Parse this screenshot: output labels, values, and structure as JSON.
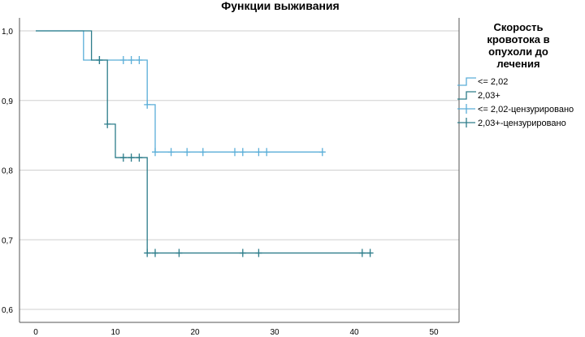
{
  "chart_data": {
    "type": "line",
    "title": "Функции выживания",
    "xlabel": "",
    "ylabel": "",
    "xlim": [
      0,
      50
    ],
    "ylim": [
      0.6,
      1.0
    ],
    "x_ticks": [
      0,
      10,
      20,
      30,
      40,
      50
    ],
    "y_ticks": [
      0.6,
      0.7,
      0.8,
      0.9,
      1.0
    ],
    "x_tick_labels": [
      "0",
      "10",
      "20",
      "30",
      "40",
      "50"
    ],
    "y_tick_labels": [
      "0,6",
      "0,7",
      "0,8",
      "0,9",
      "1,0"
    ],
    "grid": "horizontal",
    "legend_position": "top-right",
    "legend_title": "Скорость кровотока в опухоли до лечения",
    "legend_title_lines": [
      "Скорость",
      "кровотока в",
      "опухоли до",
      "лечения"
    ],
    "legend_entries": [
      {
        "label": "<= 2,02",
        "kind": "step",
        "color": "#5aaed8"
      },
      {
        "label": "2,03+",
        "kind": "step",
        "color": "#2d7d8a"
      },
      {
        "label": "<= 2,02-цензурировано",
        "kind": "censor",
        "color": "#5aaed8"
      },
      {
        "label": "2,03+-цензурировано",
        "kind": "censor",
        "color": "#2d7d8a"
      }
    ],
    "series": [
      {
        "name": "<= 2,02",
        "color": "#5aaed8",
        "steps": [
          [
            0,
            1.0
          ],
          [
            6,
            0.958
          ],
          [
            14,
            0.894
          ],
          [
            15,
            0.826
          ],
          [
            36,
            0.826
          ]
        ],
        "censored": [
          [
            8,
            0.958
          ],
          [
            11,
            0.958
          ],
          [
            12,
            0.958
          ],
          [
            13,
            0.958
          ],
          [
            14,
            0.894
          ],
          [
            15,
            0.826
          ],
          [
            17,
            0.826
          ],
          [
            19,
            0.826
          ],
          [
            21,
            0.826
          ],
          [
            25,
            0.826
          ],
          [
            26,
            0.826
          ],
          [
            28,
            0.826
          ],
          [
            29,
            0.826
          ],
          [
            36,
            0.826
          ]
        ]
      },
      {
        "name": "2,03+",
        "color": "#2d7d8a",
        "steps": [
          [
            0,
            1.0
          ],
          [
            7,
            0.958
          ],
          [
            9,
            0.866
          ],
          [
            10,
            0.818
          ],
          [
            14,
            0.681
          ],
          [
            42,
            0.681
          ]
        ],
        "censored": [
          [
            8,
            0.958
          ],
          [
            9,
            0.866
          ],
          [
            11,
            0.818
          ],
          [
            12,
            0.818
          ],
          [
            13,
            0.818
          ],
          [
            14,
            0.681
          ],
          [
            15,
            0.681
          ],
          [
            18,
            0.681
          ],
          [
            26,
            0.681
          ],
          [
            28,
            0.681
          ],
          [
            41,
            0.681
          ],
          [
            42,
            0.681
          ]
        ]
      }
    ]
  }
}
